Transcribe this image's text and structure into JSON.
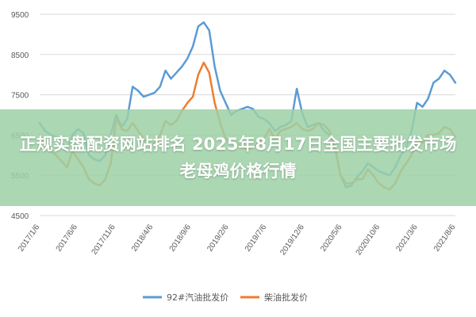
{
  "overlay": {
    "title": "正规实盘配资网站排名 2025年8月17日全国主要批发市场老母鸡价格行情"
  },
  "chart_data": {
    "type": "line",
    "title": "",
    "xlabel": "",
    "ylabel": "",
    "ylim": [
      4500,
      9500
    ],
    "yticks": [
      "9500",
      "8500",
      "7500",
      "6500",
      "5500",
      "4500"
    ],
    "xticks": [
      "2017/1/6",
      "2017/6/6",
      "2017/11/6",
      "2018/4/6",
      "2018/9/6",
      "2019/2/6",
      "2019/7/6",
      "2019/12/6",
      "2020/5/6",
      "2020/10/6",
      "2021/3/6",
      "2021/8/6"
    ],
    "grid": true,
    "legend": "bottom",
    "series": [
      {
        "name": "92#汽油批发价",
        "color": "#5b9bd5",
        "values": [
          6800,
          6600,
          6500,
          6450,
          6300,
          6150,
          6500,
          6650,
          6550,
          6000,
          5900,
          5850,
          6000,
          6500,
          7000,
          6700,
          6900,
          7700,
          7600,
          7450,
          7500,
          7550,
          7700,
          8100,
          7900,
          8050,
          8200,
          8400,
          8700,
          9200,
          9300,
          9100,
          8200,
          7600,
          7300,
          7000,
          7100,
          7150,
          7200,
          7150,
          6950,
          6900,
          6800,
          6600,
          6700,
          6750,
          6850,
          7650,
          7050,
          6700,
          6750,
          6800,
          6600,
          6500,
          6200,
          5500,
          5200,
          5250,
          5450,
          5600,
          5800,
          5700,
          5600,
          5550,
          5500,
          5700,
          6000,
          6200,
          6600,
          7300,
          7200,
          7400,
          7800,
          7900,
          8100,
          8000,
          7800
        ]
      },
      {
        "name": "柴油批发价",
        "color": "#ed7d31",
        "values": [
          6500,
          6300,
          6100,
          6000,
          5850,
          5700,
          6100,
          5900,
          5700,
          5400,
          5300,
          5250,
          5400,
          5800,
          6900,
          6650,
          6600,
          6800,
          6600,
          6400,
          6250,
          6300,
          6500,
          6850,
          6750,
          6850,
          7100,
          7300,
          7450,
          8000,
          8300,
          8050,
          7300,
          6800,
          6400,
          6350,
          6300,
          6200,
          6150,
          6200,
          6300,
          6400,
          6650,
          6400,
          6600,
          6650,
          6700,
          6800,
          6650,
          6600,
          6650,
          6800,
          6750,
          6600,
          6200,
          5500,
          5300,
          5300,
          5400,
          5400,
          5650,
          5500,
          5300,
          5200,
          5150,
          5300,
          5600,
          5800,
          6000,
          6400,
          6300,
          6500,
          6500,
          6550,
          6700,
          6650,
          6450
        ]
      }
    ]
  }
}
